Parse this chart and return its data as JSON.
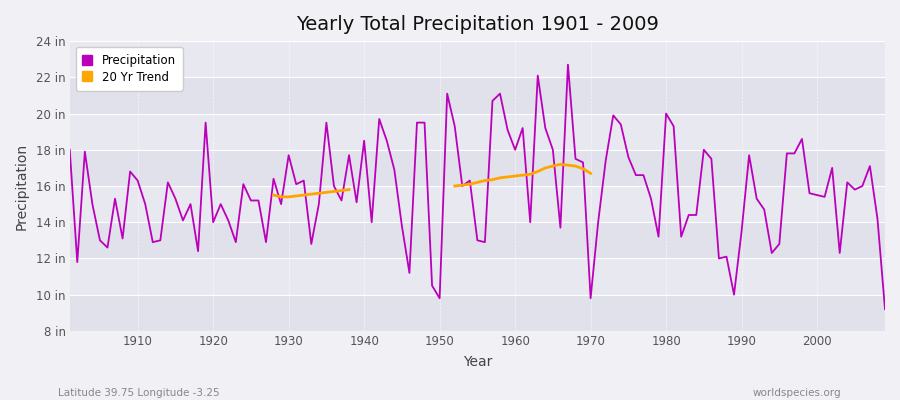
{
  "title": "Yearly Total Precipitation 1901 - 2009",
  "xlabel": "Year",
  "ylabel": "Precipitation",
  "subtitle_left": "Latitude 39.75 Longitude -3.25",
  "subtitle_right": "worldspecies.org",
  "line_color": "#bb00bb",
  "trend_color": "#FFA500",
  "fig_bg_color": "#f0f0f5",
  "plot_bg_color": "#e8e8f0",
  "grid_color": "#ffffff",
  "ylim": [
    8,
    24
  ],
  "yticks": [
    8,
    10,
    12,
    14,
    16,
    18,
    20,
    22,
    24
  ],
  "ytick_labels": [
    "8 in",
    "10 in",
    "12 in",
    "14 in",
    "16 in",
    "18 in",
    "20 in",
    "22 in",
    "24 in"
  ],
  "years": [
    1901,
    1902,
    1903,
    1904,
    1905,
    1906,
    1907,
    1908,
    1909,
    1910,
    1911,
    1912,
    1913,
    1914,
    1915,
    1916,
    1917,
    1918,
    1919,
    1920,
    1921,
    1922,
    1923,
    1924,
    1925,
    1926,
    1927,
    1928,
    1929,
    1930,
    1931,
    1932,
    1933,
    1934,
    1935,
    1936,
    1937,
    1938,
    1939,
    1940,
    1941,
    1942,
    1943,
    1944,
    1945,
    1946,
    1947,
    1948,
    1949,
    1950,
    1951,
    1952,
    1953,
    1954,
    1955,
    1956,
    1957,
    1958,
    1959,
    1960,
    1961,
    1962,
    1963,
    1964,
    1965,
    1966,
    1967,
    1968,
    1969,
    1970,
    1971,
    1972,
    1973,
    1974,
    1975,
    1976,
    1977,
    1978,
    1979,
    1980,
    1981,
    1982,
    1983,
    1984,
    1985,
    1986,
    1987,
    1988,
    1989,
    1990,
    1991,
    1992,
    1993,
    1994,
    1995,
    1996,
    1997,
    1998,
    1999,
    2000,
    2001,
    2002,
    2003,
    2004,
    2005,
    2006,
    2007,
    2008,
    2009
  ],
  "precip": [
    18.0,
    11.8,
    17.9,
    15.0,
    13.0,
    12.6,
    15.3,
    13.1,
    16.8,
    16.3,
    15.0,
    12.9,
    13.0,
    16.2,
    15.3,
    14.1,
    15.0,
    12.4,
    19.5,
    14.0,
    15.0,
    14.1,
    12.9,
    16.1,
    15.2,
    15.2,
    12.9,
    16.4,
    15.0,
    17.7,
    16.1,
    16.3,
    12.8,
    15.0,
    19.5,
    16.0,
    15.2,
    17.7,
    15.1,
    18.5,
    14.0,
    19.7,
    18.5,
    16.9,
    13.8,
    11.2,
    19.5,
    19.5,
    10.5,
    9.8,
    21.1,
    19.3,
    16.0,
    16.3,
    13.0,
    12.9,
    20.7,
    21.1,
    19.1,
    18.0,
    19.2,
    14.0,
    22.1,
    19.2,
    18.0,
    13.7,
    22.7,
    17.5,
    17.3,
    9.8,
    14.0,
    17.4,
    19.9,
    19.4,
    17.6,
    16.6,
    16.6,
    15.3,
    13.2,
    20.0,
    19.3,
    13.2,
    14.4,
    14.4,
    18.0,
    17.5,
    12.0,
    12.1,
    10.0,
    13.5,
    17.7,
    15.3,
    14.7,
    12.3,
    12.8,
    17.8,
    17.8,
    18.6,
    15.6,
    15.5,
    15.4,
    17.0,
    12.3,
    16.2,
    15.8,
    16.0,
    17.1,
    14.2,
    9.2
  ],
  "trend_seg1_years": [
    1928,
    1929,
    1930,
    1931,
    1932,
    1933,
    1934,
    1935,
    1936,
    1937,
    1938
  ],
  "trend_seg1_values": [
    15.5,
    15.4,
    15.4,
    15.45,
    15.5,
    15.55,
    15.6,
    15.65,
    15.7,
    15.75,
    15.8
  ],
  "trend_seg2_years": [
    1952,
    1953,
    1954,
    1955,
    1956,
    1957,
    1958,
    1959,
    1960,
    1961,
    1962,
    1963,
    1964,
    1965,
    1966,
    1967,
    1968,
    1969,
    1970
  ],
  "trend_seg2_values": [
    16.0,
    16.05,
    16.1,
    16.2,
    16.3,
    16.35,
    16.45,
    16.5,
    16.55,
    16.6,
    16.65,
    16.8,
    17.0,
    17.1,
    17.2,
    17.15,
    17.1,
    16.95,
    16.7
  ]
}
